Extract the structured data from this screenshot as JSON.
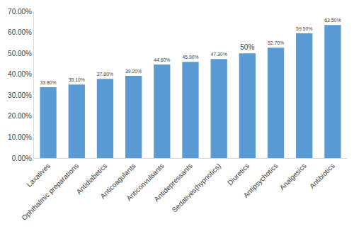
{
  "chart_data": {
    "type": "bar",
    "categories": [
      "Laxatives",
      "Ophthalmic preparations",
      "Antidiabetics",
      "Anticoagulants",
      "Anticonvulsants",
      "Antidepressants",
      "Sedatives(hypnotics)",
      "Diuretics",
      "Antipsychotics",
      "Analgesics",
      "Antibiotics"
    ],
    "values": [
      33.8,
      35.1,
      37.8,
      39.2,
      44.6,
      45.9,
      47.3,
      50,
      52.7,
      59.5,
      63.5
    ],
    "value_labels": [
      "33.80%",
      "35.10%",
      "37.80%",
      "39.20%",
      "44.60%",
      "45.90%",
      "47.30%",
      "50%",
      "52.70%",
      "59.50%",
      "63.50%"
    ],
    "color": "#5b9bd5",
    "ylim": [
      0,
      70
    ],
    "yticks": [
      {
        "value": 0,
        "label": "0.00%"
      },
      {
        "value": 10,
        "label": "10.00%"
      },
      {
        "value": 20,
        "label": "20.00%"
      },
      {
        "value": 30,
        "label": "30.00%"
      },
      {
        "value": 40,
        "label": "40.00%"
      },
      {
        "value": 50,
        "label": "50.00%"
      },
      {
        "value": 60,
        "label": "60.00%"
      },
      {
        "value": 70,
        "label": "70.00%"
      }
    ],
    "data_labels": true,
    "grid": false
  }
}
